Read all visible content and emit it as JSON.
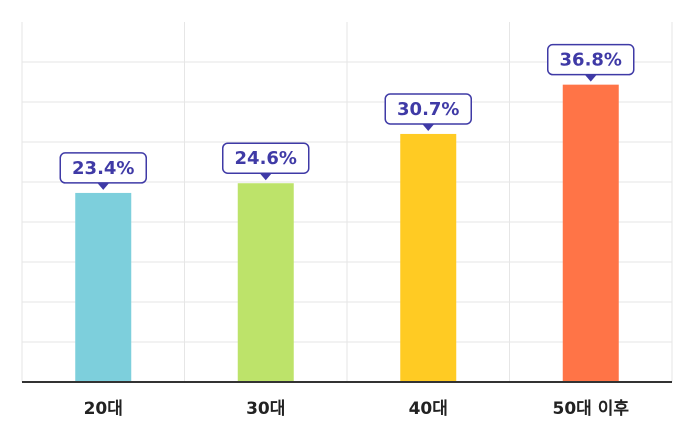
{
  "chart_data": {
    "type": "bar",
    "categories": [
      "20대",
      "30대",
      "40대",
      "50대 이후"
    ],
    "values": [
      23.4,
      24.6,
      30.7,
      36.8
    ],
    "data_labels": [
      "23.4%",
      "24.6%",
      "30.7%",
      "36.8%"
    ],
    "unit": "%",
    "ylim": [
      0,
      40
    ],
    "grid": true,
    "legend": "none",
    "colors": [
      "#7dcfdc",
      "#bde36a",
      "#ffcb23",
      "#ff7447"
    ],
    "label_color": "#3f3aa6",
    "grid_color": "#e6e6e6",
    "axis_color": "#333333"
  }
}
